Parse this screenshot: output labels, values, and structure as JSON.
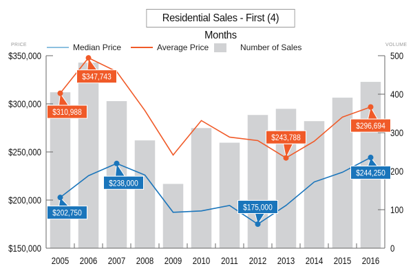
{
  "chart_data": {
    "type": "bar",
    "title": "Residential Sales - First (4) Months",
    "categories": [
      "2005",
      "2006",
      "2007",
      "2008",
      "2009",
      "2010",
      "2011",
      "2012",
      "2013",
      "2014",
      "2015",
      "2016"
    ],
    "left_axis": {
      "caption": "PRICE",
      "range": [
        150000,
        350000
      ],
      "ticks": [
        150000,
        200000,
        250000,
        300000,
        350000
      ],
      "tick_labels": [
        "$150,000",
        "$200,000",
        "$250,000",
        "$300,000",
        "$350,000"
      ]
    },
    "right_axis": {
      "caption": "VOLUME",
      "range": [
        0,
        500
      ],
      "ticks": [
        0,
        100,
        200,
        300,
        400,
        500
      ],
      "tick_labels": [
        "0",
        "100",
        "200",
        "300",
        "400",
        "500"
      ]
    },
    "series": [
      {
        "name": "Median Price",
        "type": "line",
        "axis": "left",
        "color": "#1a75bb",
        "values": [
          202750,
          225300,
          238000,
          226000,
          187300,
          188700,
          194400,
          175000,
          194400,
          218800,
          228900,
          244250
        ],
        "labels": [
          {
            "index": 0,
            "text": "$202,750"
          },
          {
            "index": 2,
            "text": "$238,000"
          },
          {
            "index": 7,
            "text": "$175,000"
          },
          {
            "index": 11,
            "text": "$244,250"
          }
        ]
      },
      {
        "name": "Average Price",
        "type": "line",
        "axis": "left",
        "color": "#f05a28",
        "values": [
          310988,
          347743,
          333500,
          293000,
          246800,
          282600,
          265400,
          261800,
          243788,
          261100,
          286200,
          296694
        ],
        "labels": [
          {
            "index": 0,
            "text": "$310,988"
          },
          {
            "index": 1,
            "text": "$347,743"
          },
          {
            "index": 8,
            "text": "$243,788"
          },
          {
            "index": 11,
            "text": "$296,694"
          }
        ]
      },
      {
        "name": "Number of Sales",
        "type": "bar",
        "axis": "right",
        "color": "#d1d2d4",
        "values": [
          405,
          482,
          382,
          280,
          167,
          312,
          274,
          346,
          362,
          330,
          391,
          432
        ]
      }
    ],
    "legend_position": "top",
    "grid": false
  }
}
